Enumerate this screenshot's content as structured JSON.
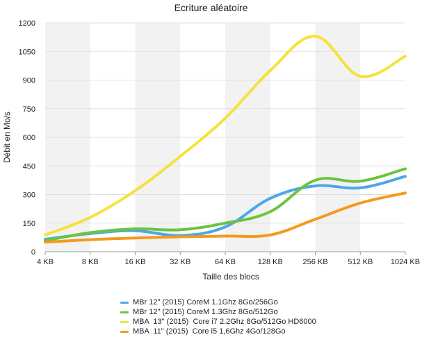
{
  "chart_data": {
    "type": "line",
    "title": "Ecriture aléatoire",
    "xlabel": "Taille des blocs",
    "ylabel": "Débit en Mo/s",
    "categories": [
      "4 KB",
      "8 KB",
      "16 KB",
      "32 KB",
      "64 KB",
      "128 KB",
      "256 KB",
      "512 KB",
      "1024 KB"
    ],
    "ylim": [
      0,
      1200
    ],
    "yticks": [
      0,
      150,
      300,
      450,
      600,
      750,
      900,
      1050,
      1200
    ],
    "grid": true,
    "legend_position": "bottom",
    "series": [
      {
        "name": "MBr 12\" (2015) CoreM 1.1Ghz 8Go/256Go",
        "color": "#4da6e8",
        "values": [
          65,
          95,
          110,
          85,
          130,
          280,
          345,
          335,
          395
        ]
      },
      {
        "name": "MBr 12\" (2015) CoreM 1.3Ghz 8Go/512Go",
        "color": "#6ac440",
        "values": [
          58,
          100,
          120,
          115,
          150,
          210,
          375,
          370,
          435
        ]
      },
      {
        "name": "MBA  13\" (2015)  Core i7 2.2Ghz 8Go/512Go HD6000",
        "color": "#f5e23a",
        "values": [
          88,
          180,
          320,
          500,
          700,
          950,
          1130,
          920,
          1025
        ]
      },
      {
        "name": "MBA  11\" (2015)  Core i5 1,6Ghz 4Go/128Go",
        "color": "#f39a1e",
        "values": [
          50,
          63,
          72,
          78,
          82,
          88,
          170,
          255,
          308
        ]
      }
    ]
  }
}
